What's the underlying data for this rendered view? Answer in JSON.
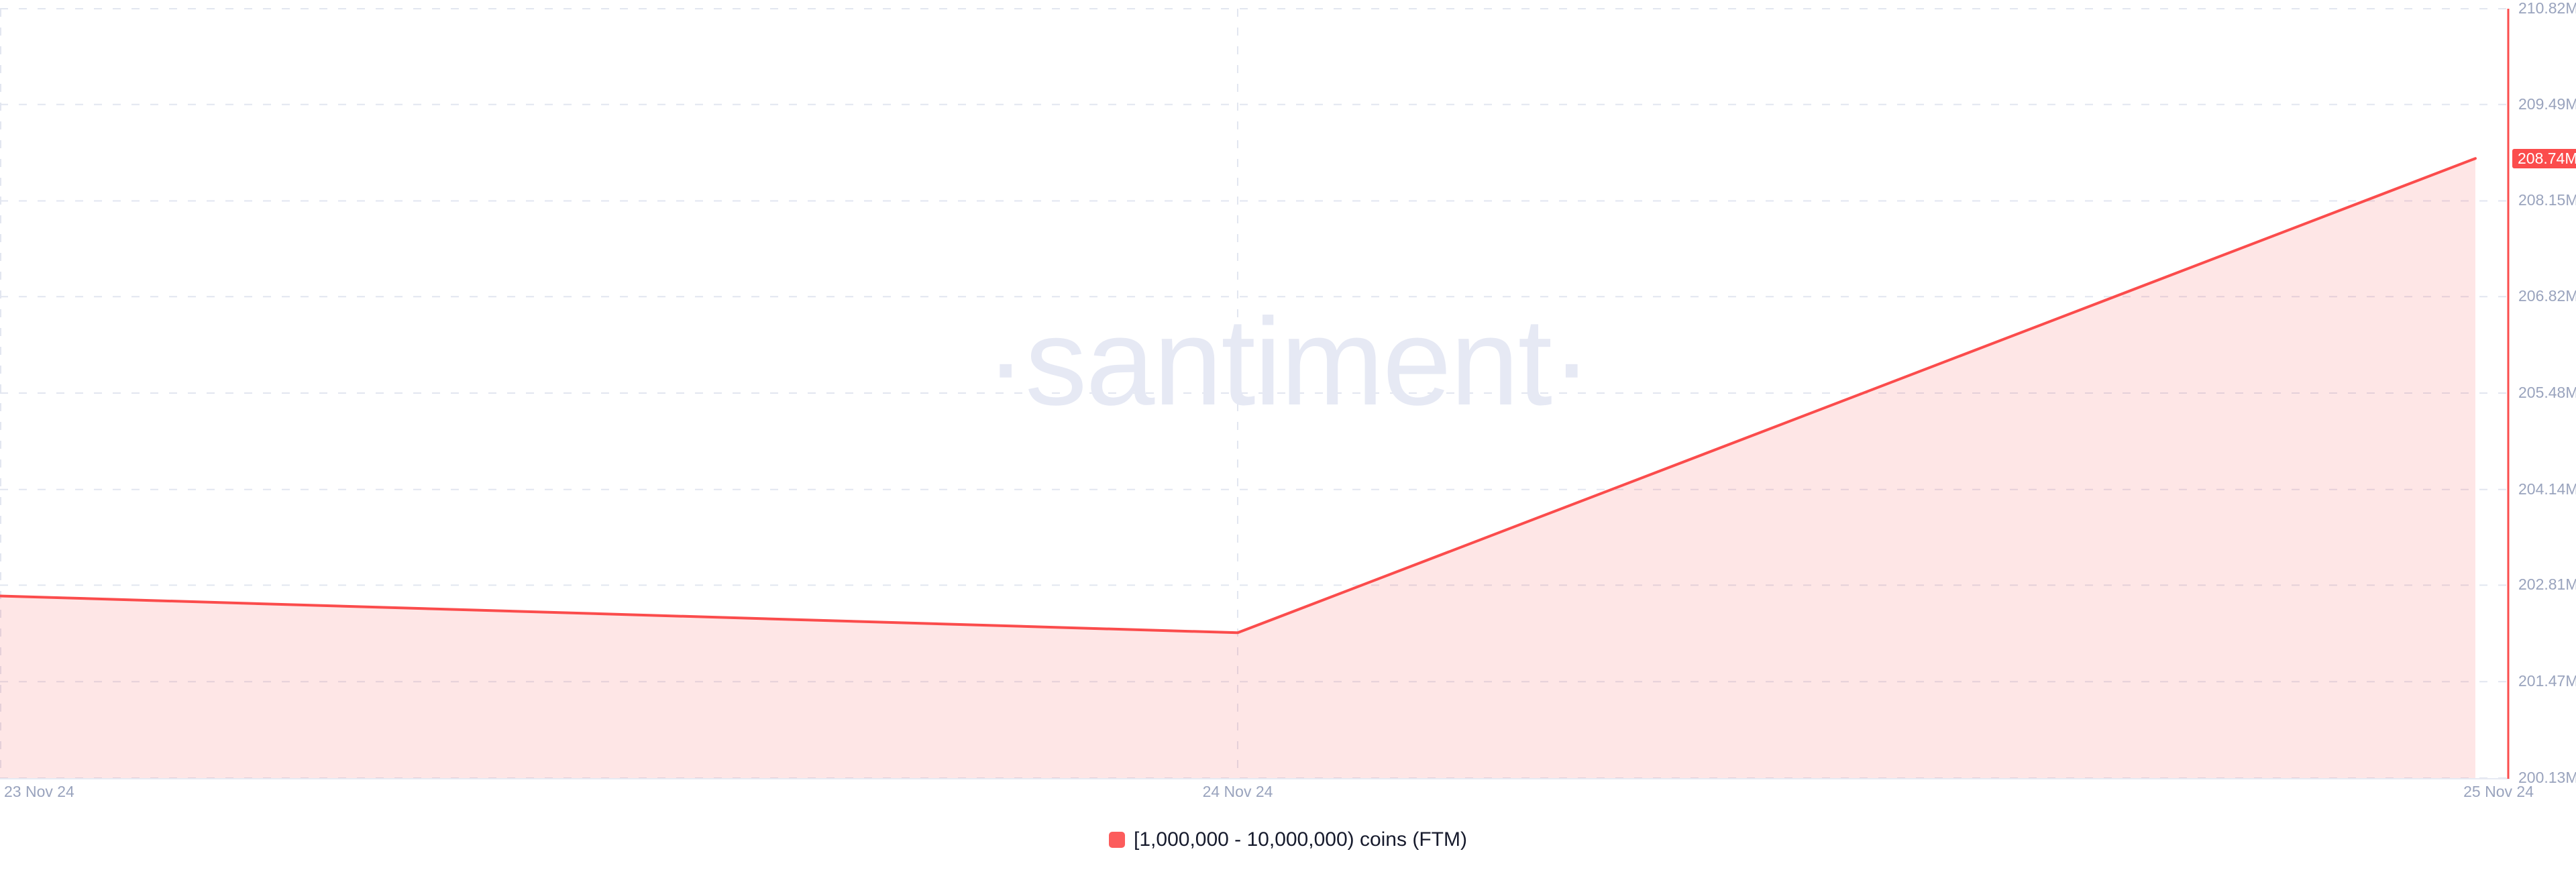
{
  "watermark": "·santiment·",
  "legend": {
    "label": "[1,000,000 - 10,000,000) coins (FTM)"
  },
  "chart_data": {
    "type": "area",
    "title": "",
    "xlabel": "",
    "ylabel": "",
    "series": [
      {
        "name": "[1,000,000 - 10,000,000) coins (FTM)",
        "x": [
          "23 Nov 24",
          "24 Nov 24",
          "25 Nov 24"
        ],
        "values_m": [
          202.66,
          202.15,
          208.74
        ],
        "unit": "M FTM"
      }
    ],
    "x_tick_labels": [
      "23 Nov 24",
      "24 Nov 24",
      "25 Nov 24"
    ],
    "y_tick_labels": [
      "210.82M",
      "209.49M",
      "208.15M",
      "206.82M",
      "205.48M",
      "204.14M",
      "202.81M",
      "201.47M",
      "200.13M"
    ],
    "y_ticks_m": [
      210.82,
      209.49,
      208.15,
      206.82,
      205.48,
      204.14,
      202.81,
      201.47,
      200.13
    ],
    "ylim_m": [
      200.13,
      210.82
    ],
    "current_value_label": "208.74M",
    "grid": "dashed",
    "legend_position": "bottom-center",
    "y_axis_side": "right"
  },
  "colors": {
    "line": "#fb4c4c",
    "fill": "#fb4c4c",
    "fill_opacity": 0.14,
    "now_line": "#fb4c4c",
    "badge_bg": "#fb4c4c",
    "badge_text": "#ffffff",
    "gridline": "#e2e6f0",
    "axis_line": "#e7eaf3",
    "tick_label": "#99a3bd",
    "watermark": "#e6e9f4",
    "legend_swatch": "#fc5c5c",
    "legend_text": "#171b2d"
  }
}
